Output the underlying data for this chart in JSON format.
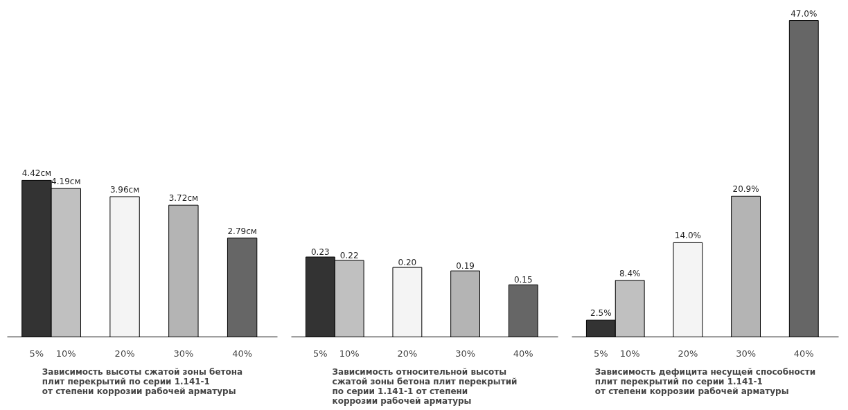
{
  "chart_data": [
    {
      "type": "bar",
      "title": "Зависимость высоты сжатой зоны бетона\nплит перекрытий по серии 1.141-1\nот степени коррозии рабочей арматуры",
      "x": [
        5,
        10,
        20,
        30,
        40
      ],
      "xlim": [
        0,
        46
      ],
      "xticks": [
        {
          "value": 5,
          "label": "5%"
        },
        {
          "value": 10,
          "label": "10%"
        },
        {
          "value": 20,
          "label": "20%"
        },
        {
          "value": 30,
          "label": "30%"
        },
        {
          "value": 40,
          "label": "40%"
        }
      ],
      "values": [
        4.42,
        4.19,
        3.96,
        3.72,
        2.79
      ],
      "value_labels": [
        "4.42см",
        "4.19см",
        "3.96см",
        "3.72см",
        "2.79см"
      ],
      "colors": [
        "#333333",
        "#c0c0c0",
        "#f4f4f4",
        "#b4b4b4",
        "#666666"
      ],
      "tick_labels": "x",
      "grid": false
    },
    {
      "type": "bar",
      "title": "Зависимость относительной высоты\nсжатой зоны бетона плит перекрытий\nпо серии 1.141-1  от степени\nкоррозии рабочей арматуры",
      "x": [
        5,
        10,
        20,
        30,
        40
      ],
      "xlim": [
        0,
        46
      ],
      "xticks": [
        {
          "value": 5,
          "label": "5%"
        },
        {
          "value": 10,
          "label": "10%"
        },
        {
          "value": 20,
          "label": "20%"
        },
        {
          "value": 30,
          "label": "30%"
        },
        {
          "value": 40,
          "label": "40%"
        }
      ],
      "values": [
        0.23,
        0.22,
        0.2,
        0.19,
        0.15
      ],
      "value_labels": [
        "0.23",
        "0.22",
        "0.20",
        "0.19",
        "0.15"
      ],
      "colors": [
        "#333333",
        "#c0c0c0",
        "#f4f4f4",
        "#b4b4b4",
        "#666666"
      ],
      "tick_labels": "x",
      "grid": false
    },
    {
      "type": "bar",
      "title": "Зависимость дефицита несущей способности\nплит перекрытий по серии 1.141-1\nот степени коррозии рабочей арматуры",
      "x": [
        5,
        10,
        20,
        30,
        40
      ],
      "xlim": [
        0,
        46
      ],
      "xticks": [
        {
          "value": 5,
          "label": "5%"
        },
        {
          "value": 10,
          "label": "10%"
        },
        {
          "value": 20,
          "label": "20%"
        },
        {
          "value": 30,
          "label": "30%"
        },
        {
          "value": 40,
          "label": "40%"
        }
      ],
      "values": [
        2.5,
        8.4,
        14.0,
        20.9,
        47.0
      ],
      "value_labels": [
        "2.5%",
        "8.4%",
        "14.0%",
        "20.9%",
        "47.0%"
      ],
      "colors": [
        "#333333",
        "#c0c0c0",
        "#f4f4f4",
        "#b4b4b4",
        "#666666"
      ],
      "tick_labels": "x",
      "grid": false
    }
  ]
}
